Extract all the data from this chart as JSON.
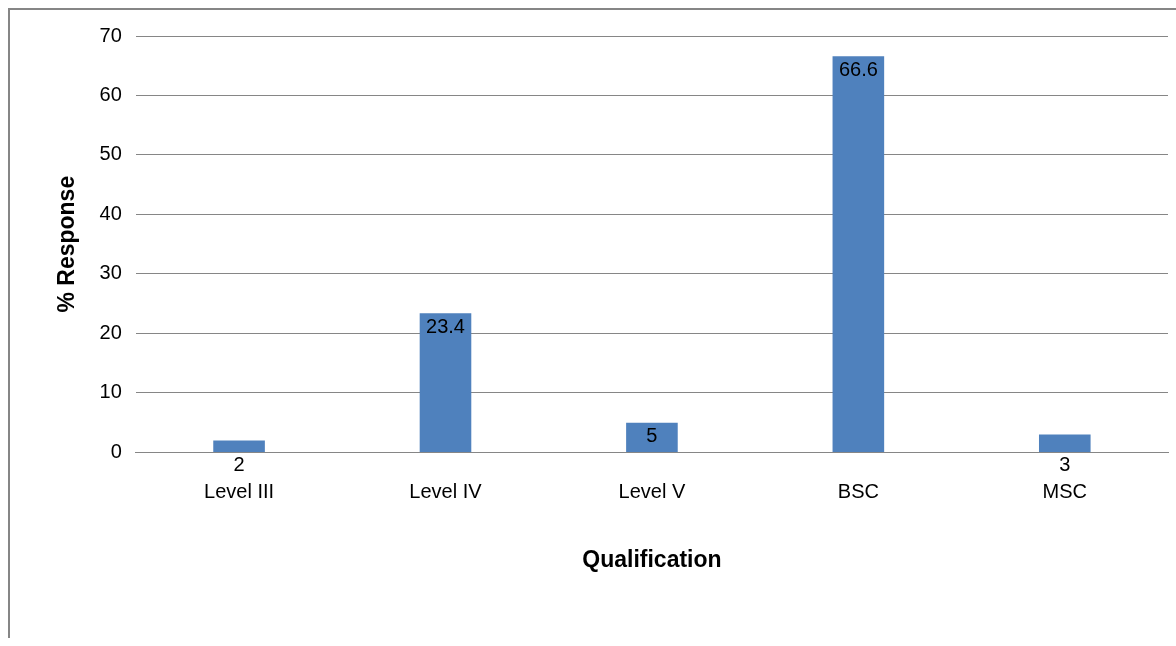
{
  "chart_data": {
    "type": "bar",
    "xlabel": "Qualification",
    "ylabel": "% Response",
    "categories": [
      "Level III",
      "Level IV",
      "Level V",
      "BSC",
      "MSC"
    ],
    "values": [
      2,
      23.4,
      5,
      66.6,
      3
    ],
    "color": "#4f81bd",
    "ylim": [
      0,
      70
    ],
    "yticks": [
      0,
      10,
      20,
      30,
      40,
      50,
      60,
      70
    ],
    "grid": "y",
    "data_labels": true
  }
}
